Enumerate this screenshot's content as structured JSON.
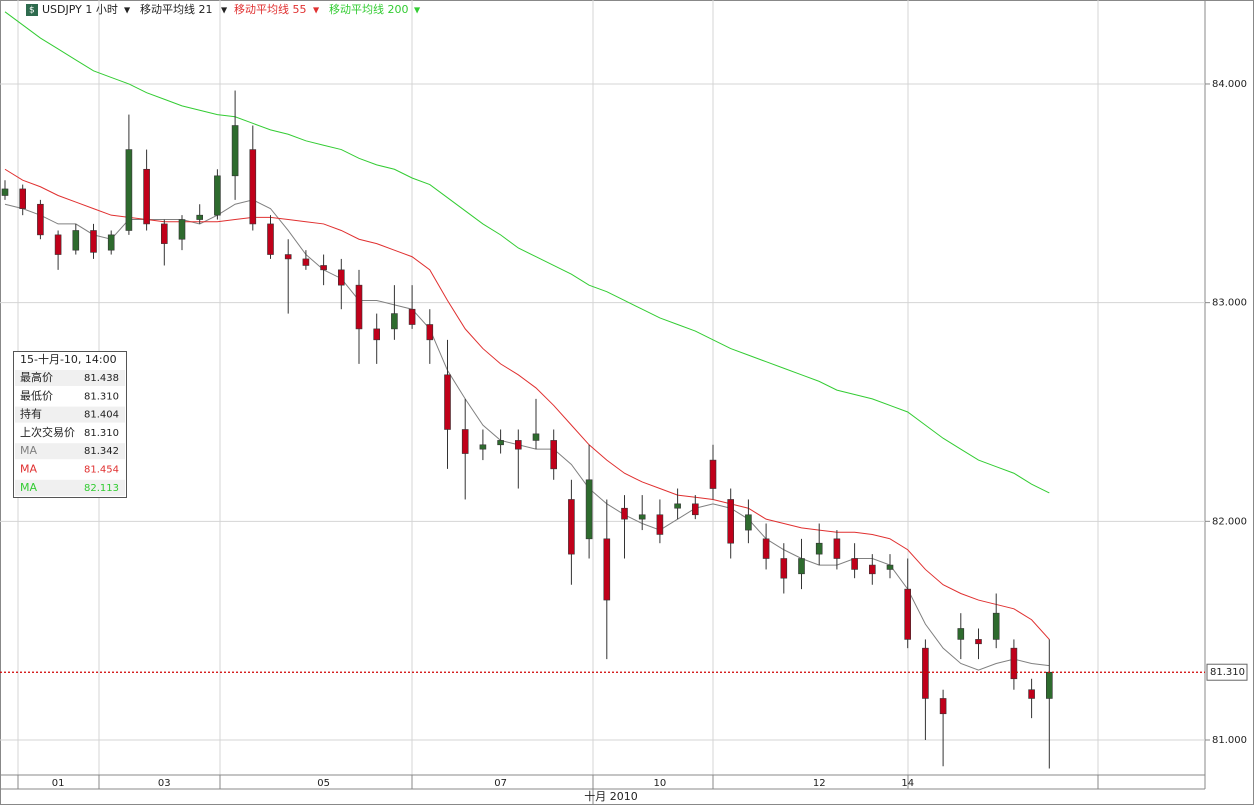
{
  "chart_data": {
    "type": "candlestick",
    "symbol": "USDJPY 1 小时",
    "x_title": "十月 2010",
    "categories": [
      null,
      null,
      null,
      "01",
      null,
      null,
      null,
      null,
      null,
      "03",
      null,
      null,
      null,
      null,
      null,
      null,
      null,
      null,
      "05",
      null,
      null,
      null,
      null,
      null,
      null,
      null,
      null,
      null,
      "07",
      null,
      null,
      null,
      null,
      null,
      null,
      null,
      null,
      "10",
      null,
      null,
      null,
      null,
      null,
      null,
      null,
      null,
      "12",
      null,
      null,
      null,
      null,
      "14",
      null,
      null,
      null,
      null,
      null,
      null,
      null,
      null
    ],
    "open": [
      83.49,
      83.52,
      83.45,
      83.31,
      83.24,
      83.33,
      83.24,
      83.33,
      83.61,
      83.36,
      83.29,
      83.38,
      83.4,
      83.58,
      83.7,
      83.36,
      83.22,
      83.2,
      83.17,
      83.15,
      83.08,
      82.88,
      82.88,
      82.97,
      82.9,
      82.67,
      82.42,
      82.33,
      82.35,
      82.37,
      82.37,
      82.37,
      82.1,
      81.92,
      81.92,
      82.06,
      82.01,
      82.03,
      82.06,
      82.08,
      82.28,
      82.1,
      81.96,
      81.92,
      81.83,
      81.76,
      81.85,
      81.92,
      81.83,
      81.8,
      81.78,
      81.69,
      81.42,
      81.19,
      81.46,
      81.46,
      81.46,
      81.42,
      81.23,
      81.19
    ],
    "high": [
      83.56,
      83.54,
      83.47,
      83.33,
      83.36,
      83.36,
      83.33,
      83.86,
      83.7,
      83.38,
      83.4,
      83.45,
      83.61,
      83.97,
      83.81,
      83.4,
      83.29,
      83.24,
      83.22,
      83.2,
      83.15,
      82.95,
      83.08,
      83.08,
      82.97,
      82.83,
      82.56,
      82.42,
      82.42,
      82.42,
      82.56,
      82.42,
      82.19,
      82.35,
      82.1,
      82.12,
      82.12,
      82.1,
      82.15,
      82.12,
      82.35,
      82.15,
      82.1,
      81.99,
      81.9,
      81.92,
      81.99,
      81.96,
      81.9,
      81.85,
      81.85,
      81.83,
      81.46,
      81.23,
      81.58,
      81.51,
      81.67,
      81.46,
      81.28,
      81.46
    ],
    "low": [
      83.47,
      83.4,
      83.29,
      83.15,
      83.22,
      83.2,
      83.22,
      83.31,
      83.33,
      83.17,
      83.24,
      83.36,
      83.38,
      83.47,
      83.33,
      83.2,
      82.95,
      83.15,
      83.08,
      82.97,
      82.72,
      82.72,
      82.83,
      82.88,
      82.72,
      82.24,
      82.1,
      82.28,
      82.31,
      82.15,
      82.33,
      82.19,
      81.71,
      81.83,
      81.37,
      81.83,
      81.96,
      81.9,
      82.01,
      82.01,
      82.1,
      81.83,
      81.9,
      81.78,
      81.67,
      81.69,
      81.8,
      81.78,
      81.74,
      81.71,
      81.74,
      81.42,
      81.0,
      80.88,
      81.37,
      81.37,
      81.42,
      81.23,
      81.1,
      80.87
    ],
    "close": [
      83.52,
      83.43,
      83.31,
      83.22,
      83.33,
      83.23,
      83.31,
      83.7,
      83.36,
      83.27,
      83.38,
      83.4,
      83.58,
      83.81,
      83.36,
      83.22,
      83.2,
      83.17,
      83.15,
      83.08,
      82.88,
      82.83,
      82.95,
      82.9,
      82.83,
      82.42,
      82.31,
      82.35,
      82.37,
      82.33,
      82.4,
      82.24,
      81.85,
      82.19,
      81.64,
      82.01,
      82.03,
      81.94,
      82.08,
      82.03,
      82.15,
      81.9,
      82.03,
      81.83,
      81.74,
      81.83,
      81.9,
      81.83,
      81.78,
      81.76,
      81.8,
      81.46,
      81.19,
      81.12,
      81.51,
      81.44,
      81.58,
      81.28,
      81.19,
      81.31
    ],
    "up_color": "#2e6b2e",
    "down_color": "#c0001a",
    "series": [
      {
        "name": "移动平均线 21",
        "color": "#808080",
        "values": [
          83.45,
          83.43,
          83.4,
          83.36,
          83.36,
          83.31,
          83.29,
          83.38,
          83.38,
          83.38,
          83.38,
          83.36,
          83.4,
          83.45,
          83.47,
          83.43,
          83.33,
          83.22,
          83.15,
          83.11,
          83.01,
          83.01,
          82.99,
          82.97,
          82.88,
          82.69,
          82.56,
          82.44,
          82.37,
          82.35,
          82.33,
          82.33,
          82.26,
          82.15,
          82.08,
          82.03,
          81.99,
          81.96,
          82.01,
          82.06,
          82.08,
          82.06,
          82.01,
          81.92,
          81.87,
          81.83,
          81.8,
          81.8,
          81.83,
          81.83,
          81.8,
          81.69,
          81.53,
          81.42,
          81.35,
          81.32,
          81.35,
          81.37,
          81.35,
          81.34
        ]
      },
      {
        "name": "移动平均线 55",
        "color": "#e03030",
        "values": [
          83.61,
          83.56,
          83.53,
          83.49,
          83.46,
          83.43,
          83.4,
          83.39,
          83.38,
          83.37,
          83.37,
          83.37,
          83.37,
          83.38,
          83.39,
          83.39,
          83.38,
          83.37,
          83.36,
          83.33,
          83.29,
          83.27,
          83.24,
          83.21,
          83.15,
          83.01,
          82.88,
          82.79,
          82.72,
          82.67,
          82.61,
          82.53,
          82.44,
          82.35,
          82.28,
          82.22,
          82.18,
          82.15,
          82.12,
          82.11,
          82.1,
          82.08,
          82.06,
          82.01,
          81.99,
          81.97,
          81.96,
          81.95,
          81.95,
          81.94,
          81.92,
          81.87,
          81.78,
          81.71,
          81.67,
          81.64,
          81.62,
          81.6,
          81.55,
          81.46
        ]
      },
      {
        "name": "移动平均线 200",
        "color": "#33cc33",
        "values": [
          84.33,
          84.27,
          84.21,
          84.16,
          84.11,
          84.06,
          84.03,
          84.0,
          83.96,
          83.93,
          83.9,
          83.88,
          83.86,
          83.85,
          83.82,
          83.79,
          83.77,
          83.74,
          83.72,
          83.7,
          83.66,
          83.63,
          83.61,
          83.57,
          83.54,
          83.48,
          83.42,
          83.36,
          83.31,
          83.25,
          83.21,
          83.17,
          83.13,
          83.08,
          83.05,
          83.01,
          82.97,
          82.93,
          82.9,
          82.87,
          82.83,
          82.79,
          82.76,
          82.73,
          82.7,
          82.67,
          82.64,
          82.6,
          82.58,
          82.56,
          82.53,
          82.5,
          82.44,
          82.38,
          82.33,
          82.28,
          82.25,
          82.22,
          82.17,
          82.13
        ]
      }
    ],
    "ylim": [
      80.84,
      84.384
    ],
    "yticks": [
      {
        "value": 81,
        "label": "81.000"
      },
      {
        "value": 82,
        "label": "82.000"
      },
      {
        "value": 83,
        "label": "83.000"
      },
      {
        "value": 84,
        "label": "84.000"
      }
    ],
    "last_price": {
      "value": 81.31,
      "label": "81.310"
    },
    "grid": true,
    "info_panel": {
      "time": "15-十月-10, 14:00",
      "rows": [
        [
          "最高价",
          "81.438"
        ],
        [
          "最低价",
          "81.310"
        ],
        [
          "持有",
          "81.404"
        ],
        [
          "上次交易价",
          "81.310"
        ],
        [
          "MA",
          "81.342"
        ],
        [
          "MA",
          "81.454"
        ],
        [
          "MA",
          "82.113"
        ]
      ]
    }
  }
}
